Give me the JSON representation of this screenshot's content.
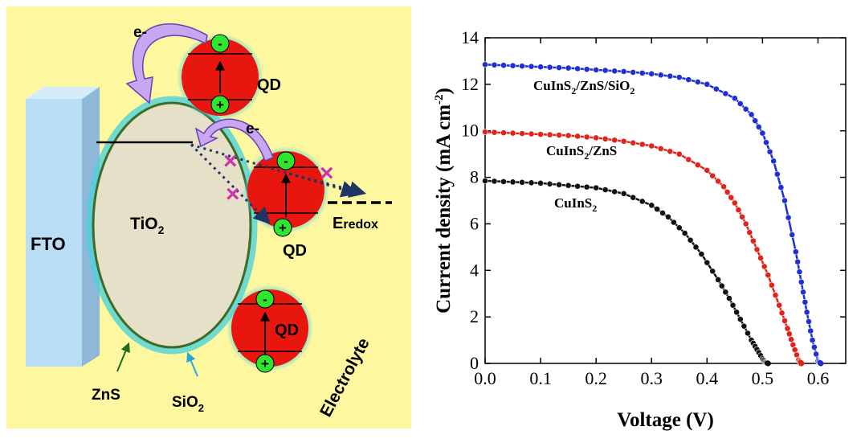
{
  "diagram": {
    "background_color": "#fdf7a0",
    "labels": {
      "fto": "FTO",
      "tio2": "TiO",
      "tio2_sub": "2",
      "zns": "ZnS",
      "sio2": "SiO",
      "sio2_sub": "2",
      "electrolyte": "Electrolyte",
      "eredox_main": "E",
      "eredox_sub": "redox",
      "electron_top": "e-",
      "electron_mid": "e-"
    },
    "quantum_dots": [
      {
        "label": "QD",
        "minus": "-",
        "plus": "+"
      },
      {
        "label": "QD",
        "minus": "-",
        "plus": "+"
      },
      {
        "label": "QD",
        "minus": "-",
        "plus": "+"
      }
    ],
    "blocked_mark": "×",
    "colors": {
      "qd_fill": "#e8160f",
      "qd_glow": "#4fd1d9",
      "charge_fill": "#2ee62e",
      "tio2_fill": "#e6e0c9",
      "shell_outline": "#3d6b2a",
      "fto_front": "#b9ddf5",
      "fto_side": "#8fb8d8",
      "arrow_fill": "#c9a6f2",
      "arrow_stroke": "#6a3fb5",
      "dotted_arrow": "#1f3566",
      "block_mark": "#cc33aa",
      "zns_arrow": "#1e6b1e",
      "sio2_arrow": "#2aa7e0"
    }
  },
  "chart_data": {
    "type": "line",
    "xlabel": "Voltage (V)",
    "ylabel": "Current density (mA cm",
    "ylabel_suffix": ")",
    "ylabel_sup": "-2",
    "xlim": [
      0.0,
      0.65
    ],
    "ylim": [
      0,
      14
    ],
    "xticks": [
      "0.0",
      "0.1",
      "0.2",
      "0.3",
      "0.4",
      "0.5",
      "0.6"
    ],
    "yticks": [
      "0",
      "2",
      "4",
      "6",
      "8",
      "10",
      "12",
      "14"
    ],
    "grid": false,
    "series": [
      {
        "name": "CuInS2/ZnS/SiO2",
        "label_parts": [
          "CuInS",
          "2",
          "/ZnS/SiO",
          "2"
        ],
        "color": "#1f2fd6",
        "x": [
          0.0,
          0.05,
          0.1,
          0.15,
          0.2,
          0.25,
          0.3,
          0.35,
          0.4,
          0.45,
          0.48,
          0.5,
          0.52,
          0.54,
          0.56,
          0.57,
          0.58,
          0.59,
          0.6,
          0.605
        ],
        "y": [
          12.85,
          12.8,
          12.75,
          12.7,
          12.62,
          12.55,
          12.45,
          12.3,
          12.0,
          11.4,
          10.7,
          9.9,
          8.7,
          7.0,
          4.8,
          3.5,
          2.2,
          1.0,
          0.1,
          0.0
        ]
      },
      {
        "name": "CuInS2/ZnS",
        "label_parts": [
          "CuInS",
          "2",
          "/ZnS",
          ""
        ],
        "color": "#e0241c",
        "x": [
          0.0,
          0.05,
          0.1,
          0.15,
          0.2,
          0.25,
          0.3,
          0.35,
          0.4,
          0.43,
          0.45,
          0.47,
          0.49,
          0.51,
          0.53,
          0.545,
          0.555,
          0.565,
          0.57
        ],
        "y": [
          9.95,
          9.9,
          9.85,
          9.8,
          9.7,
          9.55,
          9.35,
          9.0,
          8.3,
          7.6,
          6.9,
          6.0,
          4.9,
          3.8,
          2.5,
          1.5,
          0.8,
          0.15,
          0.0
        ]
      },
      {
        "name": "CuInS2",
        "label_parts": [
          "CuInS",
          "2",
          "",
          ""
        ],
        "color": "#111111",
        "x": [
          0.0,
          0.05,
          0.1,
          0.15,
          0.2,
          0.25,
          0.3,
          0.33,
          0.36,
          0.39,
          0.42,
          0.44,
          0.46,
          0.48,
          0.49,
          0.5,
          0.505,
          0.51
        ],
        "y": [
          7.85,
          7.8,
          7.75,
          7.65,
          7.55,
          7.3,
          6.8,
          6.3,
          5.6,
          4.7,
          3.6,
          2.8,
          1.9,
          1.0,
          0.6,
          0.2,
          0.05,
          0.0
        ]
      }
    ]
  }
}
